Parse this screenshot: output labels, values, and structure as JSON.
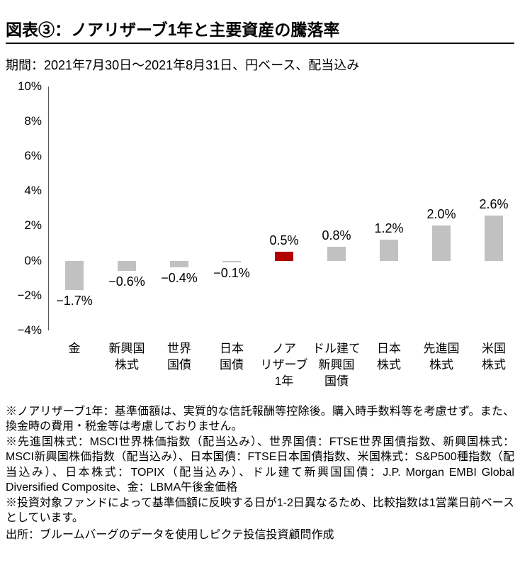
{
  "title": "図表③：ノアリザーブ1年と主要資産の騰落率",
  "subtitle": "期間：2021年7月30日～2021年8月31日、円ベース、配当込み",
  "colors": {
    "bar_default": "#c1c1c1",
    "bar_highlight": "#b20000",
    "axis": "#555555",
    "text": "#000000"
  },
  "chart_data": {
    "type": "bar",
    "title": "ノアリザーブ1年と主要資産の騰落率",
    "categories": [
      "金",
      "新興国\n株式",
      "世界\n国債",
      "日本\n国債",
      "ノア\nリザーブ\n1年",
      "ドル建て\n新興国\n国債",
      "日本\n株式",
      "先進国\n株式",
      "米国\n株式"
    ],
    "values": [
      -1.7,
      -0.6,
      -0.4,
      -0.1,
      0.5,
      0.8,
      1.2,
      2.0,
      2.6
    ],
    "value_labels": [
      "−1.7%",
      "−0.6%",
      "−0.4%",
      "−0.1%",
      "0.5%",
      "0.8%",
      "1.2%",
      "2.0%",
      "2.6%"
    ],
    "highlight_index": 4,
    "highlight_category": "ノアリザーブ1年",
    "unit": "%",
    "xlabel": "",
    "ylabel": "",
    "ylim": [
      -4,
      10
    ],
    "ytick_values": [
      10,
      8,
      6,
      4,
      2,
      0,
      -2,
      -4
    ],
    "ytick_labels": [
      "10%",
      "8%",
      "6%",
      "4%",
      "2%",
      "0%",
      "−2%",
      "−4%"
    ],
    "grid": false,
    "legend": false
  },
  "footnotes": [
    "※ノアリザーブ1年：基準価額は、実質的な信託報酬等控除後。購入時手数料等を考慮せず。また、換金時の費用・税金等は考慮しておりません。",
    "※先進国株式：MSCI世界株価指数（配当込み）、世界国債：FTSE世界国債指数、新興国株式：MSCI新興国株価指数（配当込み）、日本国債：FTSE日本国債指数、米国株式：S&P500種指数（配当込み）、日本株式：TOPIX（配当込み）、ドル建て新興国国債：J.P. Morgan EMBI Global Diversified Composite、金：LBMA午後金価格",
    "※投資対象ファンドによって基準価額に反映する日が1-2日異なるため、比較指数は1営業日前ベースとしています。"
  ],
  "source": "出所：ブルームバーグのデータを使用しピクテ投信投資顧問作成"
}
